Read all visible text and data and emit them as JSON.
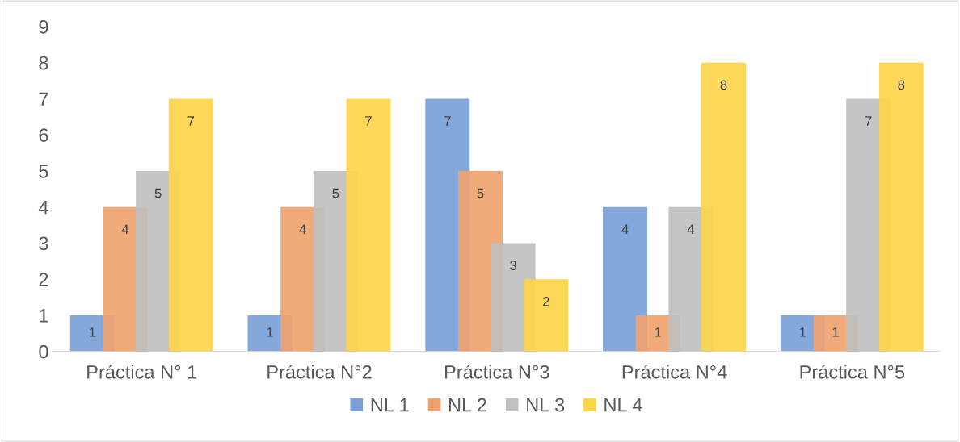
{
  "chart_data": {
    "type": "bar",
    "categories": [
      "Práctica N° 1",
      "Práctica N°2",
      "Práctica N°3",
      "Práctica N°4",
      "Práctica N°5"
    ],
    "series": [
      {
        "name": "NL 1",
        "color": "#7a9fd9",
        "values": [
          1,
          1,
          7,
          4,
          1
        ]
      },
      {
        "name": "NL 2",
        "color": "#f0a36e",
        "values": [
          4,
          4,
          5,
          1,
          1
        ]
      },
      {
        "name": "NL 3",
        "color": "#c0c0c0",
        "values": [
          5,
          5,
          3,
          4,
          7
        ]
      },
      {
        "name": "NL 4",
        "color": "#fdd44a",
        "values": [
          7,
          7,
          2,
          8,
          8
        ]
      }
    ],
    "ylim": [
      0,
      9
    ],
    "yticks": [
      0,
      1,
      2,
      3,
      4,
      5,
      6,
      7,
      8,
      9
    ],
    "grid": false,
    "legend": "bottom",
    "data_labels": true
  }
}
